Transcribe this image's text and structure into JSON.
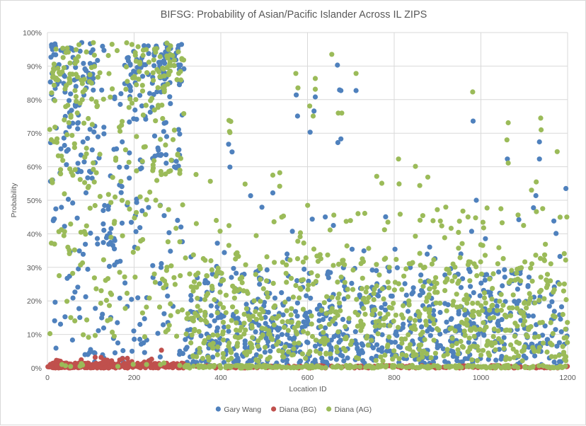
{
  "title": "BIFSG: Probability of Asian/Pacific Islander Across IL ZIPS",
  "chart_data": {
    "type": "scatter",
    "title": "BIFSG: Probability of Asian/Pacific Islander Across IL ZIPS",
    "xlabel": "Location ID",
    "ylabel": "Probability",
    "xlim": [
      0,
      1200
    ],
    "ylim_percent": [
      0,
      100
    ],
    "x_ticks": [
      0,
      200,
      400,
      600,
      800,
      1000,
      1200
    ],
    "y_ticks": [
      "0%",
      "10%",
      "20%",
      "30%",
      "40%",
      "50%",
      "60%",
      "70%",
      "80%",
      "90%",
      "100%"
    ],
    "grid": true,
    "legend_position": "bottom",
    "marker_radius": 3.6,
    "seed": 1337,
    "colors": {
      "grid": "#d9d9d9",
      "axis_text": "#595959",
      "title_text": "#595959"
    },
    "series": [
      {
        "name": "Gary Wang",
        "color": "#4F81BD",
        "note": "approximated dense point cloud read from the chart; y values are probabilities in %",
        "clusters": [
          {
            "count": 175,
            "x": [
              1,
              315
            ],
            "y": [
              3,
              97
            ]
          },
          {
            "count": 45,
            "x": [
              5,
              115
            ],
            "y": [
              58,
              97
            ]
          },
          {
            "count": 45,
            "x": [
              178,
              315
            ],
            "y": [
              58,
              97
            ]
          },
          {
            "count": 35,
            "x": [
              8,
              112
            ],
            "y": [
              84,
              97
            ]
          },
          {
            "count": 35,
            "x": [
              178,
              313
            ],
            "y": [
              84,
              97
            ]
          },
          {
            "count": 18,
            "x": [
              185,
              310
            ],
            "y": [
              90,
              97
            ]
          },
          {
            "count": 12,
            "x": [
              118,
              170
            ],
            "y": [
              5,
              60
            ]
          },
          {
            "count": 18,
            "x": [
              2,
              315
            ],
            "y": [
              0.5,
              5
            ]
          },
          {
            "count": 530,
            "x": [
              318,
              1200
            ],
            "y": [
              0.5,
              17
            ]
          },
          {
            "count": 190,
            "x": [
              318,
              1200
            ],
            "y": [
              17,
              30
            ]
          },
          {
            "count": 30,
            "x": [
              318,
              1200
            ],
            "y": [
              30,
              52
            ]
          },
          {
            "points": [
              [
                418,
                66.7
              ],
              [
                426,
                64.4
              ],
              [
                421,
                59.9
              ],
              [
                574,
                81.4
              ],
              [
                577,
                75.1
              ],
              [
                606,
                70.3
              ],
              [
                615,
                76.6
              ],
              [
                618,
                80.8
              ],
              [
                669,
                90.3
              ],
              [
                674,
                82.9
              ],
              [
                677,
                82.7
              ],
              [
                670,
                67.2
              ],
              [
                677,
                68.3
              ],
              [
                712,
                82.7
              ],
              [
                982,
                73.6
              ],
              [
                1061,
                62.3
              ],
              [
                1135,
                67.4
              ],
              [
                1135,
                62.3
              ],
              [
                1196,
                53.5
              ],
              [
                520,
                52.2
              ]
            ]
          }
        ]
      },
      {
        "name": "Diana (BG)",
        "color": "#C0504D",
        "note": "baseline cluster hugging 0%",
        "clusters": [
          {
            "count": 320,
            "x": [
              0,
              315
            ],
            "y": [
              0,
              1.5
            ]
          },
          {
            "count": 18,
            "x": [
              15,
              308
            ],
            "y": [
              1.5,
              3.2
            ]
          },
          {
            "points": [
              [
                263,
                5.3
              ]
            ]
          },
          {
            "count": 170,
            "x": [
              315,
              1200
            ],
            "y": [
              0,
              0.7
            ]
          }
        ]
      },
      {
        "name": "Diana (AG)",
        "color": "#9BBB59",
        "note": "approximated dense point cloud read from the chart; y values are probabilities in %",
        "clusters": [
          {
            "count": 165,
            "x": [
              3,
              315
            ],
            "y": [
              8,
              97
            ]
          },
          {
            "count": 45,
            "x": [
              5,
              115
            ],
            "y": [
              55,
              97
            ]
          },
          {
            "count": 45,
            "x": [
              178,
              315
            ],
            "y": [
              55,
              97
            ]
          },
          {
            "count": 30,
            "x": [
              8,
              112
            ],
            "y": [
              82,
              97
            ]
          },
          {
            "count": 30,
            "x": [
              178,
              313
            ],
            "y": [
              82,
              97
            ]
          },
          {
            "count": 12,
            "x": [
              195,
              310
            ],
            "y": [
              88,
              96
            ]
          },
          {
            "count": 10,
            "x": [
              118,
              170
            ],
            "y": [
              8,
              60
            ]
          },
          {
            "count": 12,
            "x": [
              4,
              315
            ],
            "y": [
              0,
              1.5
            ]
          },
          {
            "count": 470,
            "x": [
              318,
              1200
            ],
            "y": [
              2,
              20
            ]
          },
          {
            "count": 230,
            "x": [
              318,
              1200
            ],
            "y": [
              20,
              33
            ]
          },
          {
            "count": 70,
            "x": [
              318,
              1200
            ],
            "y": [
              33,
              48
            ]
          },
          {
            "count": 12,
            "x": [
              320,
              1200
            ],
            "y": [
              48,
              58
            ]
          },
          {
            "points": [
              [
                656,
                93.5
              ],
              [
                573,
                87.8
              ],
              [
                578,
                83.5
              ],
              [
                618,
                86.3
              ],
              [
                618,
                83.1
              ],
              [
                605,
                78.1
              ],
              [
                613,
                75.1
              ],
              [
                671,
                76.0
              ],
              [
                679,
                76.0
              ],
              [
                712,
                87.8
              ],
              [
                419,
                73.8
              ],
              [
                423,
                73.5
              ],
              [
                420,
                70.5
              ],
              [
                421,
                70.2
              ],
              [
                981,
                82.3
              ],
              [
                1063,
                73.1
              ],
              [
                1138,
                74.5
              ],
              [
                1139,
                71.0
              ],
              [
                1060,
                68.0
              ],
              [
                1063,
                61.1
              ],
              [
                1176,
                64.5
              ],
              [
                810,
                62.3
              ],
              [
                849,
                60.1
              ],
              [
                536,
                58.2
              ],
              [
                520,
                57.5
              ]
            ]
          },
          {
            "count": 230,
            "x": [
              315,
              1200
            ],
            "y": [
              0,
              0.8
            ]
          }
        ]
      }
    ]
  },
  "legend": {
    "items": [
      {
        "label": "Gary Wang",
        "color": "#4F81BD"
      },
      {
        "label": "Diana (BG)",
        "color": "#C0504D"
      },
      {
        "label": "Diana (AG)",
        "color": "#9BBB59"
      }
    ]
  }
}
